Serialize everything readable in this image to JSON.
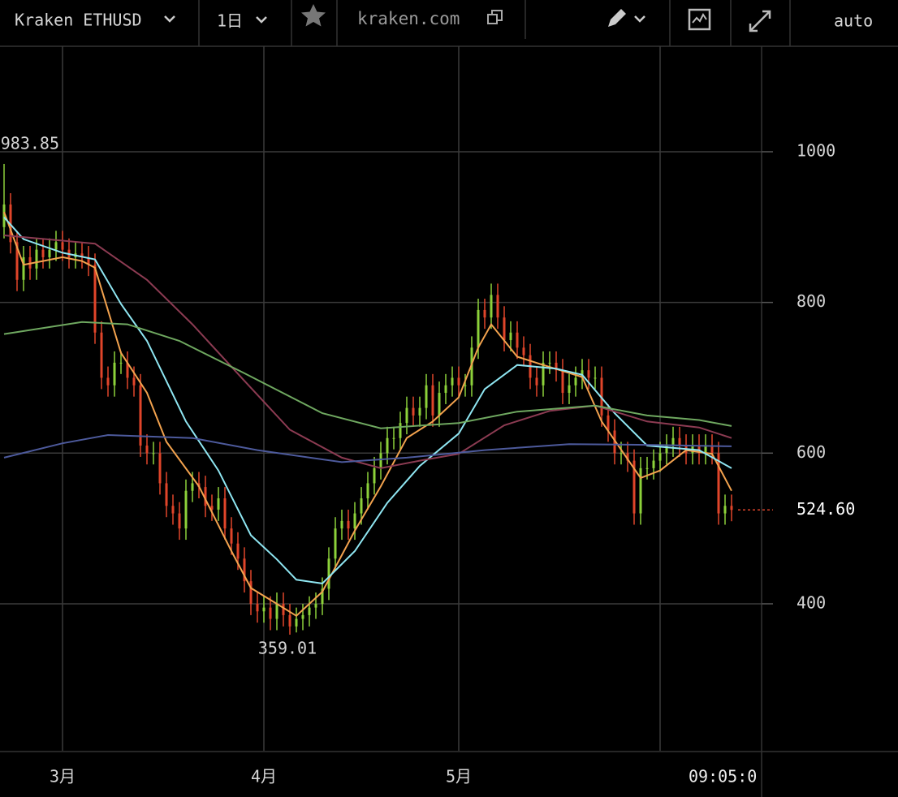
{
  "toolbar": {
    "symbol": "Kraken ETHUSD",
    "interval": "1日",
    "site": "kraken.com",
    "scale": "auto"
  },
  "chart_data": {
    "type": "candlestick",
    "up_color": "#8cd13a",
    "down_color": "#e0452a",
    "open": [
      900,
      930,
      880,
      830,
      860,
      845,
      870,
      860,
      870,
      880,
      870,
      860,
      865,
      860,
      850,
      760,
      700,
      690,
      720,
      720,
      700,
      690,
      610,
      600,
      600,
      560,
      530,
      520,
      500,
      550,
      560,
      555,
      530,
      525,
      540,
      500,
      480,
      460,
      430,
      400,
      390,
      395,
      380,
      400,
      385,
      370,
      380,
      385,
      395,
      400,
      420,
      460,
      500,
      510,
      500,
      520,
      540,
      560,
      580,
      600,
      620,
      620,
      640,
      660,
      650,
      660,
      690,
      650,
      680,
      690,
      700,
      690,
      690,
      740,
      790,
      780,
      810,
      780,
      750,
      760,
      740,
      730,
      700,
      690,
      720,
      720,
      710,
      680,
      690,
      700,
      710,
      700,
      700,
      650,
      630,
      600,
      600,
      590,
      520,
      580,
      580,
      590,
      600,
      610,
      620,
      610,
      600,
      610,
      600,
      610,
      600,
      520,
      530
    ],
    "high": [
      983.85,
      945,
      895,
      875,
      875,
      885,
      885,
      885,
      895,
      895,
      885,
      880,
      880,
      875,
      865,
      775,
      715,
      735,
      735,
      735,
      715,
      705,
      625,
      615,
      615,
      575,
      545,
      535,
      565,
      575,
      575,
      570,
      545,
      555,
      555,
      515,
      495,
      475,
      445,
      415,
      410,
      410,
      415,
      415,
      400,
      395,
      400,
      410,
      415,
      435,
      475,
      515,
      525,
      525,
      535,
      555,
      575,
      595,
      615,
      635,
      635,
      655,
      675,
      675,
      675,
      705,
      705,
      695,
      705,
      715,
      715,
      705,
      755,
      805,
      805,
      825,
      825,
      795,
      775,
      775,
      755,
      745,
      715,
      735,
      735,
      735,
      725,
      705,
      715,
      725,
      725,
      715,
      715,
      665,
      645,
      615,
      615,
      605,
      595,
      595,
      605,
      615,
      625,
      635,
      635,
      625,
      625,
      625,
      625,
      625,
      615,
      545,
      545
    ],
    "low": [
      885,
      865,
      815,
      815,
      830,
      830,
      845,
      845,
      855,
      855,
      845,
      845,
      845,
      835,
      745,
      685,
      675,
      675,
      705,
      685,
      675,
      595,
      585,
      585,
      545,
      515,
      505,
      485,
      485,
      535,
      540,
      515,
      510,
      510,
      485,
      465,
      445,
      415,
      385,
      375,
      375,
      365,
      365,
      370,
      359.01,
      362,
      365,
      370,
      380,
      385,
      405,
      445,
      485,
      485,
      485,
      505,
      525,
      545,
      565,
      585,
      605,
      605,
      625,
      635,
      635,
      645,
      635,
      635,
      665,
      675,
      675,
      675,
      675,
      725,
      765,
      765,
      765,
      735,
      735,
      725,
      715,
      685,
      675,
      675,
      705,
      695,
      665,
      665,
      675,
      685,
      685,
      685,
      635,
      615,
      585,
      585,
      575,
      505,
      505,
      565,
      565,
      575,
      585,
      595,
      595,
      585,
      585,
      585,
      585,
      585,
      505,
      505,
      509.6
    ],
    "close": [
      930,
      880,
      830,
      860,
      845,
      870,
      860,
      870,
      880,
      870,
      860,
      865,
      860,
      850,
      760,
      700,
      690,
      720,
      720,
      700,
      690,
      610,
      600,
      600,
      560,
      530,
      520,
      500,
      550,
      560,
      555,
      530,
      525,
      540,
      500,
      480,
      460,
      430,
      400,
      390,
      395,
      380,
      400,
      385,
      370,
      380,
      385,
      395,
      400,
      420,
      460,
      500,
      510,
      500,
      520,
      540,
      560,
      580,
      600,
      620,
      620,
      640,
      660,
      650,
      660,
      690,
      650,
      680,
      690,
      700,
      690,
      690,
      740,
      790,
      780,
      810,
      780,
      750,
      760,
      740,
      730,
      700,
      690,
      720,
      720,
      710,
      680,
      690,
      700,
      710,
      700,
      700,
      650,
      630,
      600,
      600,
      590,
      520,
      580,
      580,
      590,
      600,
      610,
      620,
      610,
      600,
      610,
      600,
      610,
      600,
      520,
      530,
      524.6
    ],
    "lines": [
      {
        "color": "#f2a24e",
        "x": [
          0,
          3,
          6,
          9,
          12,
          14,
          18,
          22,
          25,
          30,
          35,
          38,
          42,
          45,
          49,
          54,
          58,
          62,
          66,
          70,
          73,
          75,
          79,
          83,
          89,
          92,
          98,
          101,
          105,
          109,
          112
        ],
        "values": [
          920,
          850,
          855,
          860,
          855,
          846,
          733,
          680,
          615,
          556,
          470,
          421,
          400,
          384,
          416,
          497,
          556,
          620,
          642,
          674,
          740,
          771,
          728,
          717,
          701,
          642,
          567,
          577,
          604,
          599,
          550
        ]
      },
      {
        "color": "#8fe6f2",
        "x": [
          0,
          3,
          9,
          14,
          18,
          22,
          28,
          33,
          38,
          42,
          45,
          49,
          54,
          59,
          64,
          70,
          74,
          79,
          85,
          89,
          94,
          99,
          107,
          112
        ],
        "values": [
          913,
          884,
          866,
          857,
          798,
          749,
          642,
          577,
          491,
          459,
          432,
          427,
          470,
          534,
          583,
          626,
          685,
          717,
          712,
          704,
          653,
          610,
          604,
          580
        ]
      },
      {
        "color": "#8c3b52",
        "x": [
          0,
          9,
          14,
          22,
          29,
          37,
          44,
          52,
          58,
          64,
          70,
          77,
          84,
          91,
          99,
          107,
          112
        ],
        "values": [
          889,
          882,
          878,
          830,
          771,
          696,
          631,
          594,
          580,
          590,
          599,
          637,
          656,
          663,
          642,
          634,
          620
        ]
      },
      {
        "color": "#6fa860",
        "x": [
          0,
          12,
          19,
          27,
          37,
          49,
          58,
          70,
          79,
          91,
          99,
          107,
          112
        ],
        "values": [
          758,
          774,
          771,
          749,
          706,
          653,
          633,
          640,
          655,
          663,
          650,
          644,
          636
        ]
      },
      {
        "color": "#4d5a9c",
        "x": [
          0,
          9,
          16,
          29,
          39,
          52,
          62,
          74,
          87,
          99,
          112
        ],
        "values": [
          594,
          613,
          624,
          620,
          604,
          588,
          594,
          604,
          612,
          611,
          609
        ]
      }
    ],
    "xlim": [
      -0.625,
      116.625
    ],
    "xticks": [
      {
        "value": 9,
        "label": "3月"
      },
      {
        "value": 40,
        "label": "4月"
      },
      {
        "value": 70,
        "label": "5月"
      },
      {
        "value": 101,
        "label": null
      }
    ],
    "ylim": [
      205,
      1140
    ],
    "yticks": [
      400,
      600,
      800,
      1000
    ],
    "grid": true,
    "time_label": "09:05:0",
    "last_price_label": "524.60"
  }
}
